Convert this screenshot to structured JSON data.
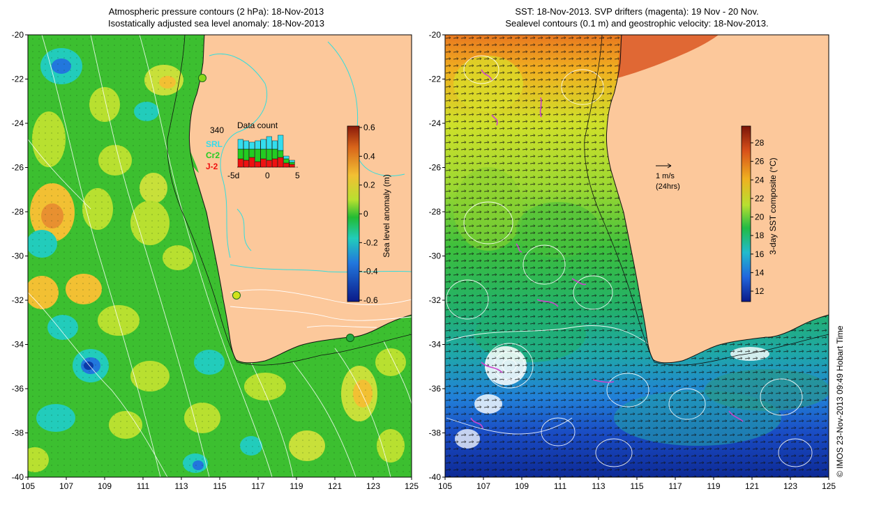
{
  "left_panel": {
    "title_line1": "Atmospheric pressure contours (2 hPa): 18-Nov-2013",
    "title_line2": "Isostatically adjusted sea level anomaly: 18-Nov-2013",
    "colorbar": {
      "label": "Sea level anomaly (m)",
      "ticks": [
        "0.6",
        "0.4",
        "0.2",
        "0",
        "-0.2",
        "-0.4",
        "-0.6"
      ]
    },
    "inset": {
      "title": "Data count",
      "max_label": "340",
      "legend": [
        {
          "name": "SRL",
          "color": "#33ddee"
        },
        {
          "name": "Cr2",
          "color": "#22cc22"
        },
        {
          "name": "J-2",
          "color": "#ee1111"
        }
      ],
      "x_ticks": [
        "-5d",
        "0",
        "5"
      ]
    }
  },
  "right_panel": {
    "title_line1": "SST: 18-Nov-2013. SVP drifters (magenta): 19 Nov - 20 Nov.",
    "title_line2": "Sealevel contours (0.1 m) and geostrophic velocity: 18-Nov-2013.",
    "scale_arrow_label1": "1 m/s",
    "scale_arrow_label2": "(24hrs)",
    "colorbar": {
      "label": "3-day SST composite (°C)",
      "ticks": [
        "28",
        "26",
        "24",
        "22",
        "20",
        "18",
        "16",
        "14",
        "12"
      ]
    }
  },
  "axes": {
    "lat_ticks": [
      "-20",
      "-22",
      "-24",
      "-26",
      "-28",
      "-30",
      "-32",
      "-34",
      "-36",
      "-38",
      "-40"
    ],
    "lon_ticks": [
      "105",
      "107",
      "109",
      "111",
      "113",
      "115",
      "117",
      "119",
      "121",
      "123",
      "125"
    ]
  },
  "credit": "© IMOS 23-Nov-2013 09:49 Hobart Time",
  "colors": {
    "land": "#fcc89b",
    "ssh_mid": "#22bb33",
    "sst_warm": "#f0b020",
    "sst_cool": "#1133aa",
    "contour": "#ffffff",
    "drifter": "#cc44cc"
  }
}
